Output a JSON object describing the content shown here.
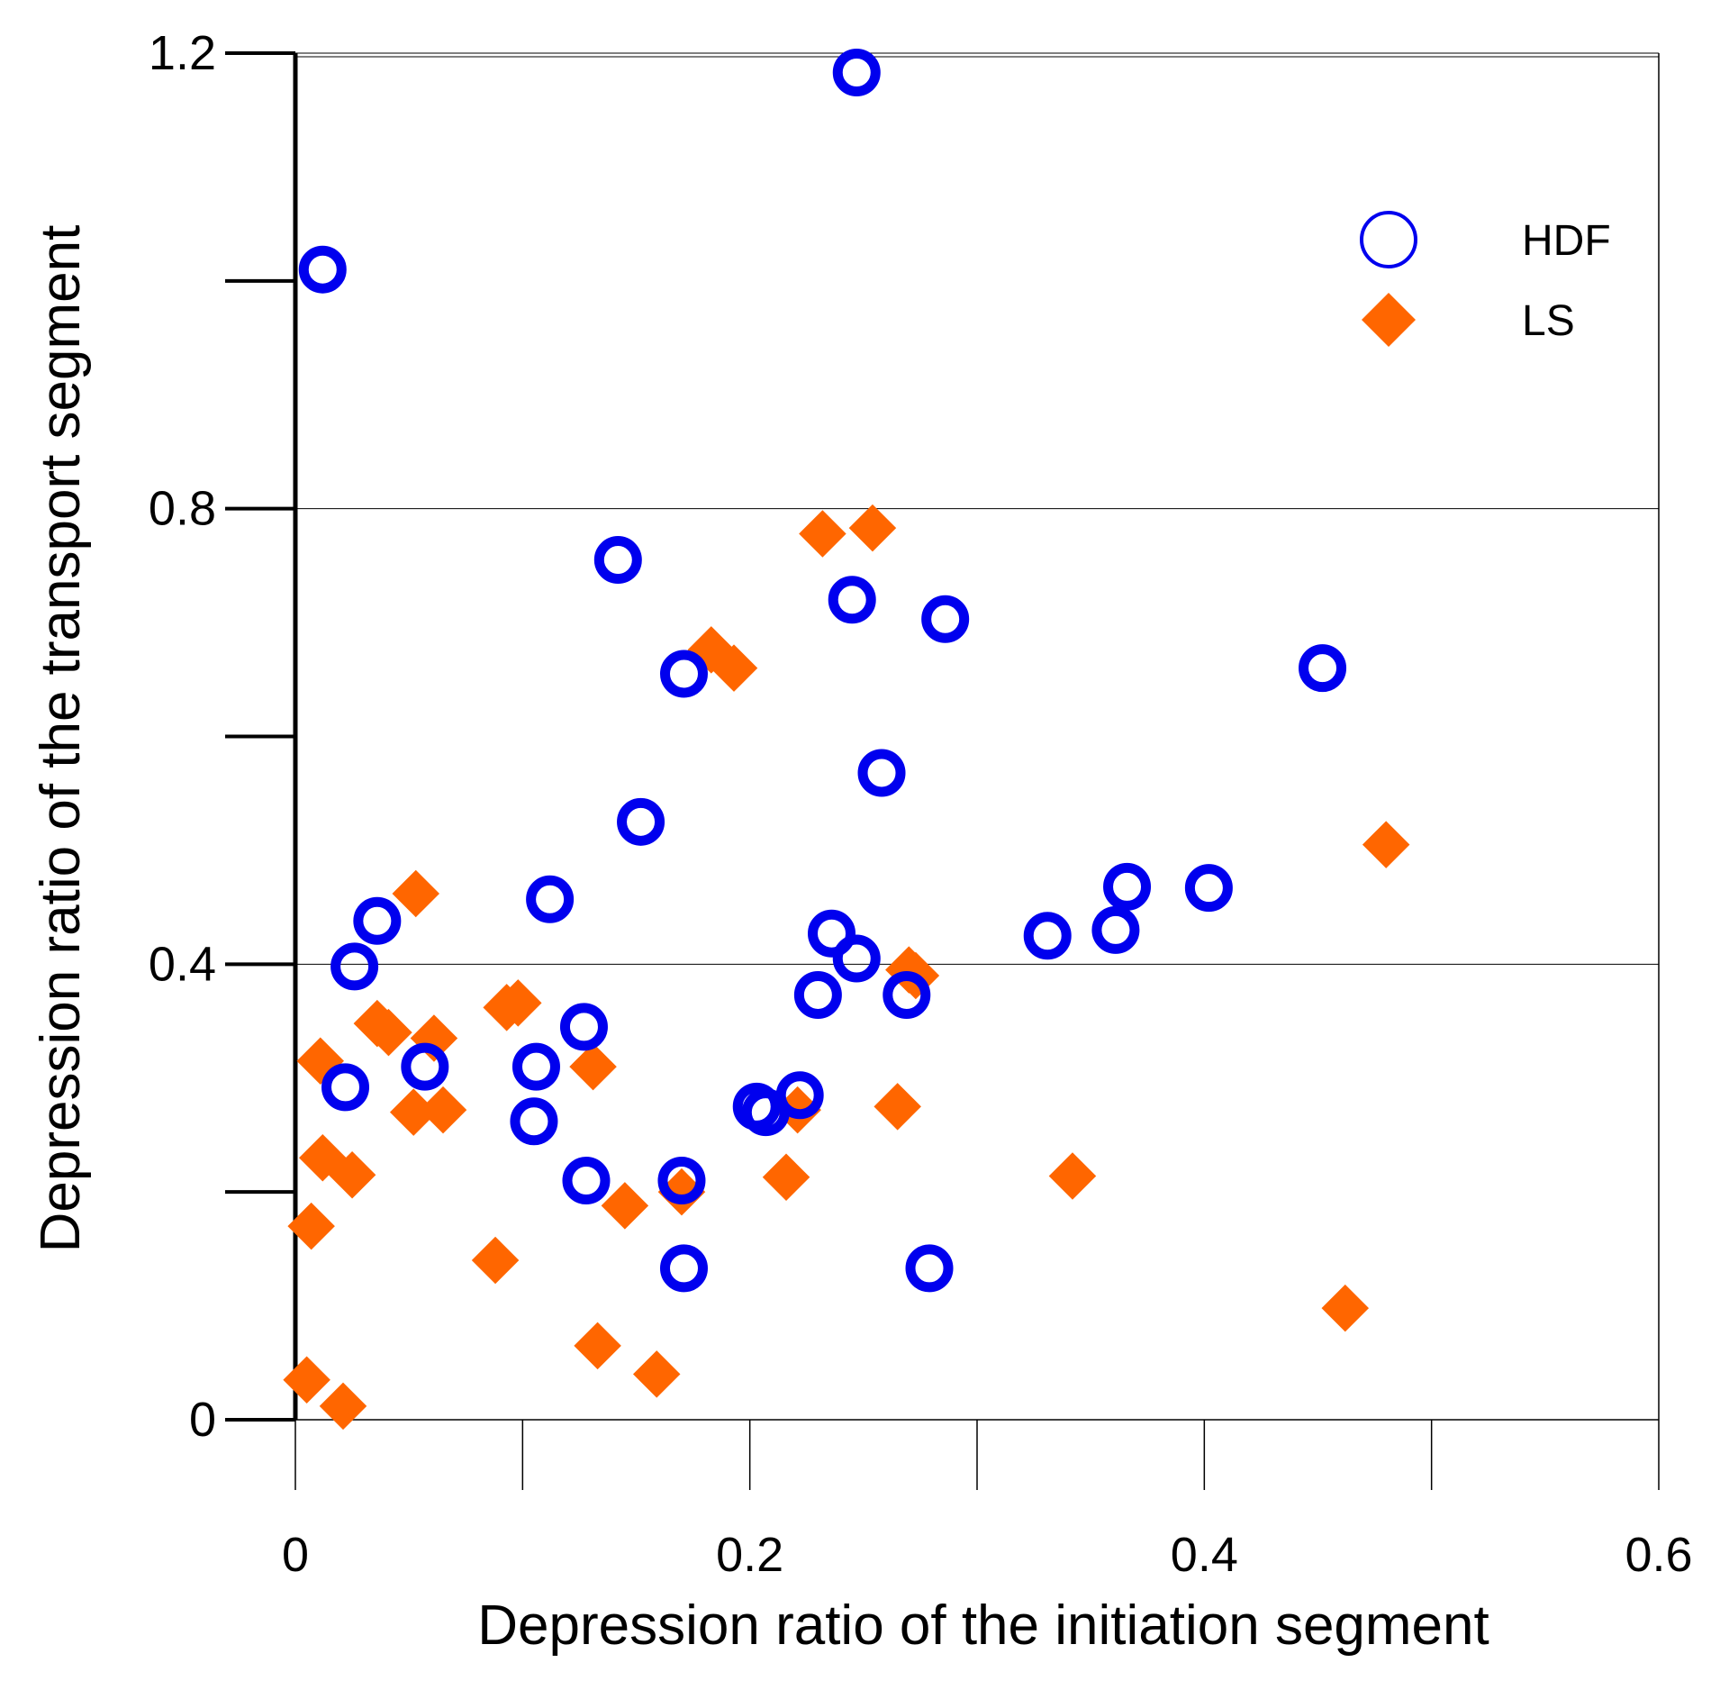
{
  "chart_data": {
    "type": "scatter",
    "xlabel": "Depression ratio of the initiation segment",
    "ylabel": "Depression ratio of the transport segment",
    "xlim": [
      0,
      0.6
    ],
    "ylim": [
      0,
      1.2
    ],
    "x_ticks": [
      0,
      0.1,
      0.2,
      0.3,
      0.4,
      0.5,
      0.6
    ],
    "x_tick_labels": [
      {
        "value": 0,
        "label": "0"
      },
      {
        "value": 0.2,
        "label": "0.2"
      },
      {
        "value": 0.4,
        "label": "0.4"
      },
      {
        "value": 0.6,
        "label": "0.6"
      }
    ],
    "y_ticks": [
      0,
      0.2,
      0.4,
      0.6,
      0.8,
      1.0,
      1.2
    ],
    "y_tick_labels": [
      {
        "value": 0,
        "label": "0"
      },
      {
        "value": 0.4,
        "label": "0.4"
      },
      {
        "value": 0.8,
        "label": "0.8"
      },
      {
        "value": 1.2,
        "label": "1.2"
      }
    ],
    "y_gridlines": [
      0.4,
      0.8,
      1.2
    ],
    "legend_position": "top-right",
    "series": [
      {
        "name": "HDF",
        "marker": "open-circle",
        "color": "#0000ee",
        "points": [
          [
            0.012,
            1.01
          ],
          [
            0.247,
            1.183
          ],
          [
            0.142,
            0.755
          ],
          [
            0.245,
            0.72
          ],
          [
            0.286,
            0.703
          ],
          [
            0.171,
            0.655
          ],
          [
            0.452,
            0.66
          ],
          [
            0.258,
            0.568
          ],
          [
            0.152,
            0.525
          ],
          [
            0.112,
            0.457
          ],
          [
            0.036,
            0.438
          ],
          [
            0.026,
            0.398
          ],
          [
            0.366,
            0.468
          ],
          [
            0.402,
            0.467
          ],
          [
            0.236,
            0.427
          ],
          [
            0.247,
            0.405
          ],
          [
            0.331,
            0.425
          ],
          [
            0.361,
            0.43
          ],
          [
            0.23,
            0.373
          ],
          [
            0.269,
            0.373
          ],
          [
            0.127,
            0.345
          ],
          [
            0.022,
            0.292
          ],
          [
            0.057,
            0.31
          ],
          [
            0.106,
            0.31
          ],
          [
            0.105,
            0.262
          ],
          [
            0.203,
            0.275
          ],
          [
            0.207,
            0.27
          ],
          [
            0.222,
            0.285
          ],
          [
            0.128,
            0.21
          ],
          [
            0.17,
            0.21
          ],
          [
            0.171,
            0.133
          ],
          [
            0.279,
            0.133
          ]
        ]
      },
      {
        "name": "LS",
        "marker": "filled-diamond",
        "color": "#ff6600",
        "points": [
          [
            0.232,
            0.778
          ],
          [
            0.254,
            0.783
          ],
          [
            0.183,
            0.676
          ],
          [
            0.193,
            0.66
          ],
          [
            0.48,
            0.505
          ],
          [
            0.053,
            0.462
          ],
          [
            0.27,
            0.395
          ],
          [
            0.273,
            0.39
          ],
          [
            0.093,
            0.362
          ],
          [
            0.098,
            0.366
          ],
          [
            0.036,
            0.348
          ],
          [
            0.041,
            0.34
          ],
          [
            0.061,
            0.335
          ],
          [
            0.011,
            0.315
          ],
          [
            0.131,
            0.31
          ],
          [
            0.052,
            0.27
          ],
          [
            0.065,
            0.272
          ],
          [
            0.221,
            0.272
          ],
          [
            0.265,
            0.275
          ],
          [
            0.012,
            0.23
          ],
          [
            0.025,
            0.215
          ],
          [
            0.216,
            0.213
          ],
          [
            0.342,
            0.214
          ],
          [
            0.145,
            0.188
          ],
          [
            0.17,
            0.2
          ],
          [
            0.007,
            0.17
          ],
          [
            0.088,
            0.14
          ],
          [
            0.462,
            0.098
          ],
          [
            0.133,
            0.065
          ],
          [
            0.159,
            0.04
          ],
          [
            0.005,
            0.035
          ],
          [
            0.021,
            0.012
          ]
        ]
      }
    ]
  }
}
